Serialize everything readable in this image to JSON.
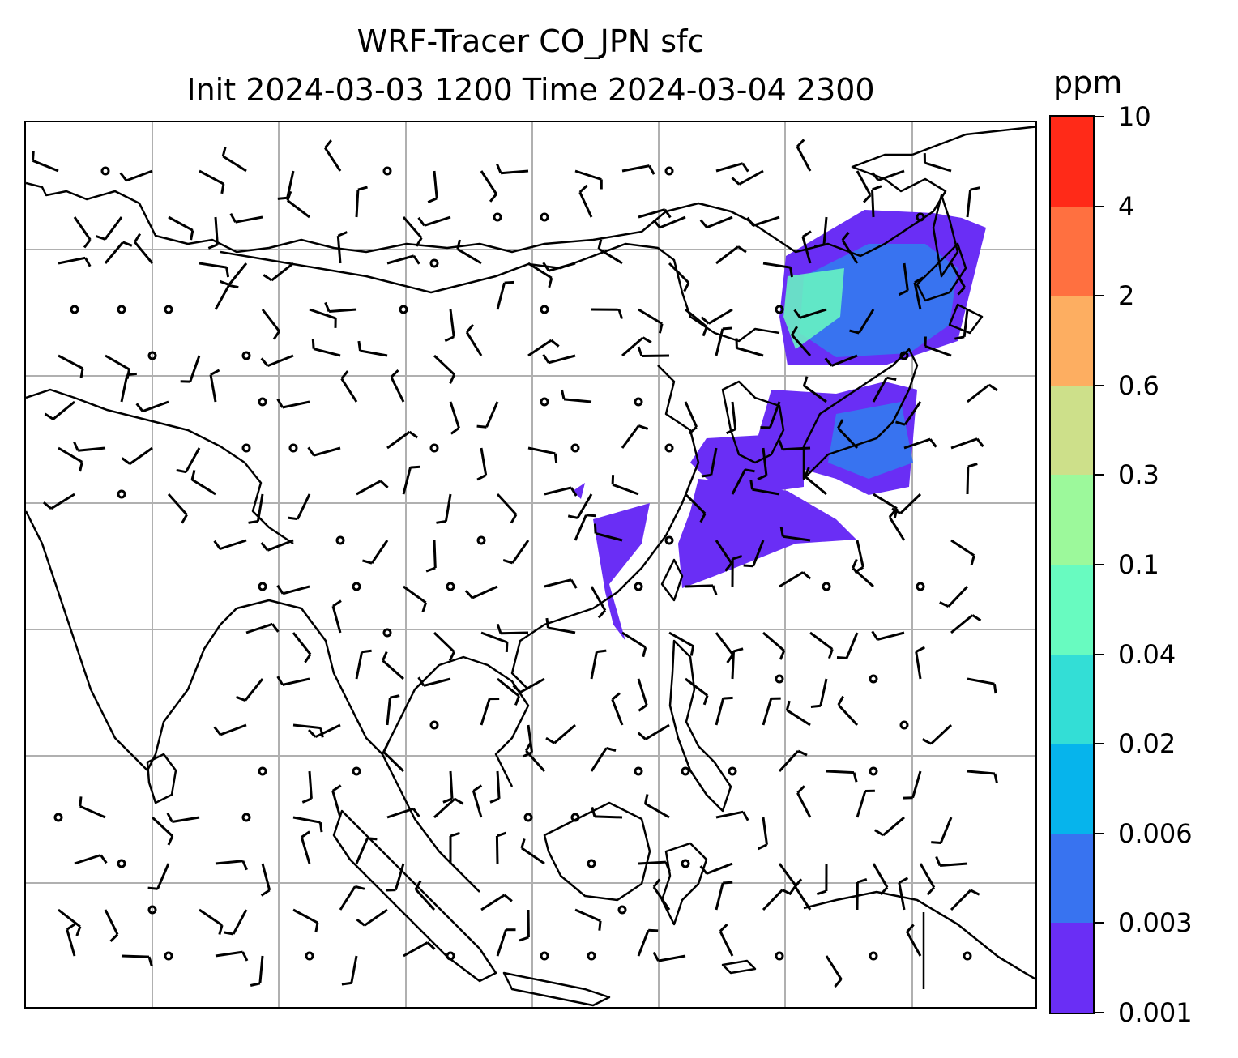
{
  "title": {
    "line1": "WRF-Tracer CO_JPN sfc",
    "line2": "Init 2024-03-03 1200 Time 2024-03-04 2300"
  },
  "colorbar": {
    "unit": "ppm",
    "ticks": [
      "0.001",
      "0.003",
      "0.006",
      "0.02",
      "0.04",
      "0.1",
      "0.3",
      "0.6",
      "2",
      "4",
      "10"
    ],
    "colors": [
      "#6a2ef5",
      "#3873f0",
      "#06b4ec",
      "#33ded6",
      "#68fbc0",
      "#9cf99b",
      "#cde08a",
      "#fdae61",
      "#ff7040",
      "#ff2a18"
    ]
  },
  "map": {
    "gridlines": true,
    "gridline_color": "#b0b0b0",
    "coastline_color": "#000000",
    "plume_colors": {
      "low": "#6a2ef5",
      "mid": "#3873f0",
      "high": "#68fbc0",
      "accent": "#33ded6"
    },
    "wind_symbols": "wind-barbs"
  }
}
